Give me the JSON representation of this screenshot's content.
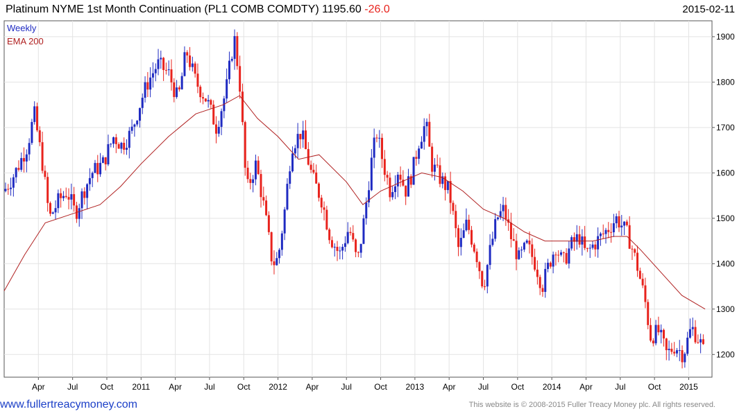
{
  "header": {
    "title_main": "Platinum NYME 1st Month Continuation (PL1 COMB COMDTY) 1195.60",
    "title_change": "-26.0",
    "date": "2015-02-11"
  },
  "footer": {
    "site": "www.fullertreacymoney.com",
    "copyright": "This website is © 2008-2015 Fuller Treacy Money plc. All rights reserved."
  },
  "colors": {
    "up": "#1f2bc2",
    "down": "#e8231d",
    "ema": "#b02020",
    "legend_weekly": "#1f2bc2",
    "legend_ema": "#b02020"
  },
  "chart_data": {
    "type": "candlestick",
    "legend": [
      "Weekly",
      "EMA 200"
    ],
    "x_ticks": [
      "Apr",
      "Jul",
      "Oct",
      "2011",
      "Apr",
      "Jul",
      "Oct",
      "2012",
      "Apr",
      "Jul",
      "Oct",
      "2013",
      "Apr",
      "Jul",
      "Oct",
      "2014",
      "Apr",
      "Jul",
      "Oct",
      "2015"
    ],
    "y_ticks": [
      1200,
      1300,
      1400,
      1500,
      1600,
      1700,
      1800,
      1900
    ],
    "ylim": [
      1150,
      1935
    ],
    "weekly_close_path": [
      [
        2010.0,
        1560
      ],
      [
        2010.08,
        1600
      ],
      [
        2010.17,
        1660
      ],
      [
        2010.22,
        1730
      ],
      [
        2010.28,
        1620
      ],
      [
        2010.33,
        1500
      ],
      [
        2010.4,
        1540
      ],
      [
        2010.46,
        1560
      ],
      [
        2010.52,
        1510
      ],
      [
        2010.58,
        1560
      ],
      [
        2010.64,
        1600
      ],
      [
        2010.72,
        1620
      ],
      [
        2010.8,
        1680
      ],
      [
        2010.86,
        1660
      ],
      [
        2010.93,
        1690
      ],
      [
        2011.0,
        1760
      ],
      [
        2011.05,
        1800
      ],
      [
        2011.12,
        1840
      ],
      [
        2011.2,
        1820
      ],
      [
        2011.27,
        1760
      ],
      [
        2011.33,
        1870
      ],
      [
        2011.4,
        1800
      ],
      [
        2011.48,
        1760
      ],
      [
        2011.55,
        1700
      ],
      [
        2011.62,
        1780
      ],
      [
        2011.68,
        1900
      ],
      [
        2011.72,
        1800
      ],
      [
        2011.77,
        1560
      ],
      [
        2011.84,
        1620
      ],
      [
        2011.9,
        1520
      ],
      [
        2011.96,
        1400
      ],
      [
        2012.0,
        1410
      ],
      [
        2012.05,
        1520
      ],
      [
        2012.1,
        1660
      ],
      [
        2012.17,
        1690
      ],
      [
        2012.25,
        1590
      ],
      [
        2012.32,
        1540
      ],
      [
        2012.38,
        1460
      ],
      [
        2012.45,
        1420
      ],
      [
        2012.52,
        1480
      ],
      [
        2012.58,
        1400
      ],
      [
        2012.63,
        1500
      ],
      [
        2012.68,
        1620
      ],
      [
        2012.72,
        1690
      ],
      [
        2012.77,
        1620
      ],
      [
        2012.82,
        1560
      ],
      [
        2012.88,
        1610
      ],
      [
        2012.93,
        1560
      ],
      [
        2012.98,
        1600
      ],
      [
        2013.03,
        1670
      ],
      [
        2013.08,
        1710
      ],
      [
        2013.12,
        1620
      ],
      [
        2013.18,
        1590
      ],
      [
        2013.25,
        1560
      ],
      [
        2013.32,
        1430
      ],
      [
        2013.38,
        1490
      ],
      [
        2013.45,
        1420
      ],
      [
        2013.5,
        1350
      ],
      [
        2013.55,
        1430
      ],
      [
        2013.6,
        1500
      ],
      [
        2013.65,
        1520
      ],
      [
        2013.7,
        1460
      ],
      [
        2013.76,
        1410
      ],
      [
        2013.82,
        1440
      ],
      [
        2013.88,
        1400
      ],
      [
        2013.93,
        1350
      ],
      [
        2013.98,
        1400
      ],
      [
        2014.03,
        1440
      ],
      [
        2014.08,
        1400
      ],
      [
        2014.14,
        1440
      ],
      [
        2014.2,
        1460
      ],
      [
        2014.25,
        1420
      ],
      [
        2014.3,
        1440
      ],
      [
        2014.36,
        1460
      ],
      [
        2014.42,
        1480
      ],
      [
        2014.47,
        1500
      ],
      [
        2014.5,
        1490
      ],
      [
        2014.56,
        1460
      ],
      [
        2014.62,
        1400
      ],
      [
        2014.68,
        1320
      ],
      [
        2014.72,
        1240
      ],
      [
        2014.78,
        1250
      ],
      [
        2014.84,
        1200
      ],
      [
        2014.9,
        1220
      ],
      [
        2014.96,
        1200
      ],
      [
        2015.02,
        1260
      ],
      [
        2015.08,
        1230
      ],
      [
        2015.12,
        1196
      ]
    ],
    "ema_200": [
      [
        2010.0,
        1340
      ],
      [
        2010.15,
        1420
      ],
      [
        2010.3,
        1490
      ],
      [
        2010.5,
        1510
      ],
      [
        2010.7,
        1530
      ],
      [
        2010.85,
        1570
      ],
      [
        2011.0,
        1620
      ],
      [
        2011.2,
        1680
      ],
      [
        2011.4,
        1730
      ],
      [
        2011.6,
        1750
      ],
      [
        2011.72,
        1770
      ],
      [
        2011.85,
        1720
      ],
      [
        2012.0,
        1680
      ],
      [
        2012.15,
        1630
      ],
      [
        2012.3,
        1640
      ],
      [
        2012.5,
        1580
      ],
      [
        2012.62,
        1530
      ],
      [
        2012.75,
        1560
      ],
      [
        2012.9,
        1580
      ],
      [
        2013.05,
        1600
      ],
      [
        2013.2,
        1590
      ],
      [
        2013.35,
        1560
      ],
      [
        2013.5,
        1520
      ],
      [
        2013.65,
        1500
      ],
      [
        2013.8,
        1470
      ],
      [
        2013.95,
        1450
      ],
      [
        2014.1,
        1450
      ],
      [
        2014.3,
        1450
      ],
      [
        2014.45,
        1460
      ],
      [
        2014.55,
        1460
      ],
      [
        2014.65,
        1430
      ],
      [
        2014.8,
        1380
      ],
      [
        2014.95,
        1330
      ],
      [
        2015.12,
        1300
      ]
    ]
  }
}
